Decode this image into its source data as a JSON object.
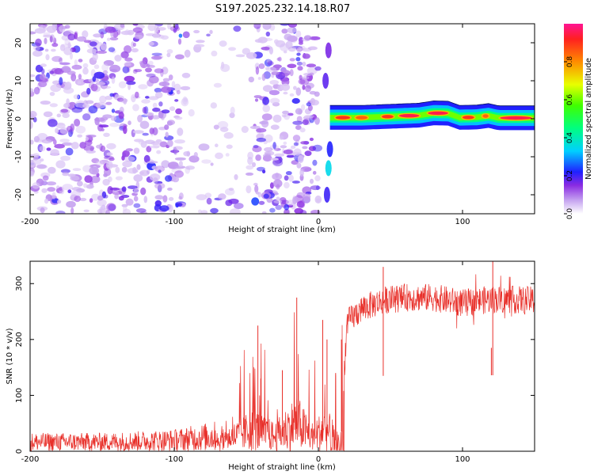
{
  "title": "S197.2025.232.14.18.R07",
  "chart_data": [
    {
      "type": "heatmap",
      "xlabel": "Height of straight line (km)",
      "ylabel": "Frequency (Hz)",
      "xlim": [
        -200,
        150
      ],
      "ylim": [
        -25,
        25
      ],
      "xticks": [
        -200,
        -100,
        0,
        100
      ],
      "yticks": [
        -20,
        -10,
        0,
        10,
        20
      ],
      "colorbar": {
        "label": "Normalized spectral amplitude",
        "range": [
          0,
          1
        ],
        "ticks": [
          "0.0",
          "0.2",
          "0.4",
          "0.6",
          "0.8"
        ]
      },
      "left_region": {
        "x_range": [
          -200,
          0
        ],
        "pattern": "scattered low-amplitude noise (purple)",
        "gap_x_range": [
          -95,
          -45
        ]
      },
      "right_signal": {
        "x_range": [
          8,
          150
        ],
        "center_frequency_hz": 0.5,
        "band_points": [
          {
            "x": 10,
            "y": 0.3
          },
          {
            "x": 30,
            "y": 0.3
          },
          {
            "x": 50,
            "y": 0.6
          },
          {
            "x": 70,
            "y": 0.9
          },
          {
            "x": 80,
            "y": 1.5
          },
          {
            "x": 90,
            "y": 1.4
          },
          {
            "x": 98,
            "y": 0.3
          },
          {
            "x": 110,
            "y": 0.4
          },
          {
            "x": 118,
            "y": 0.8
          },
          {
            "x": 125,
            "y": 0.2
          },
          {
            "x": 150,
            "y": 0.2
          }
        ],
        "peak_segments": [
          {
            "x_range": [
              12,
              22
            ],
            "amp": 0.9
          },
          {
            "x_range": [
              26,
              34
            ],
            "amp": 0.85
          },
          {
            "x_range": [
              44,
              52
            ],
            "amp": 0.9
          },
          {
            "x_range": [
              56,
              70
            ],
            "amp": 0.95
          },
          {
            "x_range": [
              76,
              90
            ],
            "amp": 0.95
          },
          {
            "x_range": [
              100,
              108
            ],
            "amp": 0.9
          },
          {
            "x_range": [
              114,
              118
            ],
            "amp": 0.85
          },
          {
            "x_range": [
              126,
              148
            ],
            "amp": 0.95
          }
        ]
      }
    },
    {
      "type": "line",
      "xlabel": "Height of straight line (km)",
      "ylabel": "SNR (10 * v/v)",
      "xlim": [
        -200,
        150
      ],
      "ylim": [
        0,
        340
      ],
      "xticks": [
        -200,
        -100,
        0,
        100
      ],
      "yticks": [
        0,
        100,
        200,
        300
      ],
      "series": [
        {
          "name": "SNR",
          "color": "#e8302a",
          "envelope_points": [
            {
              "x": -200,
              "y": 15
            },
            {
              "x": -150,
              "y": 15
            },
            {
              "x": -100,
              "y": 18
            },
            {
              "x": -70,
              "y": 25
            },
            {
              "x": -55,
              "y": 45
            },
            {
              "x": -45,
              "y": 60
            },
            {
              "x": -30,
              "y": 40
            },
            {
              "x": -15,
              "y": 80
            },
            {
              "x": -5,
              "y": 40
            },
            {
              "x": 5,
              "y": 60
            },
            {
              "x": 15,
              "y": 30
            },
            {
              "x": 20,
              "y": 230
            },
            {
              "x": 30,
              "y": 255
            },
            {
              "x": 45,
              "y": 270
            },
            {
              "x": 60,
              "y": 275
            },
            {
              "x": 80,
              "y": 275
            },
            {
              "x": 100,
              "y": 265
            },
            {
              "x": 120,
              "y": 272
            },
            {
              "x": 150,
              "y": 270
            }
          ],
          "spikes": [
            {
              "x": -42,
              "y": 225
            },
            {
              "x": -40,
              "y": 130
            },
            {
              "x": -25,
              "y": 145
            },
            {
              "x": -15,
              "y": 275
            },
            {
              "x": 3,
              "y": 235
            },
            {
              "x": 6,
              "y": 200
            },
            {
              "x": 12,
              "y": 140
            },
            {
              "x": 16,
              "y": 200
            },
            {
              "x": 45,
              "y": 330
            },
            {
              "x": 120,
              "y": 185
            },
            {
              "x": 121,
              "y": 340
            }
          ]
        }
      ]
    }
  ]
}
